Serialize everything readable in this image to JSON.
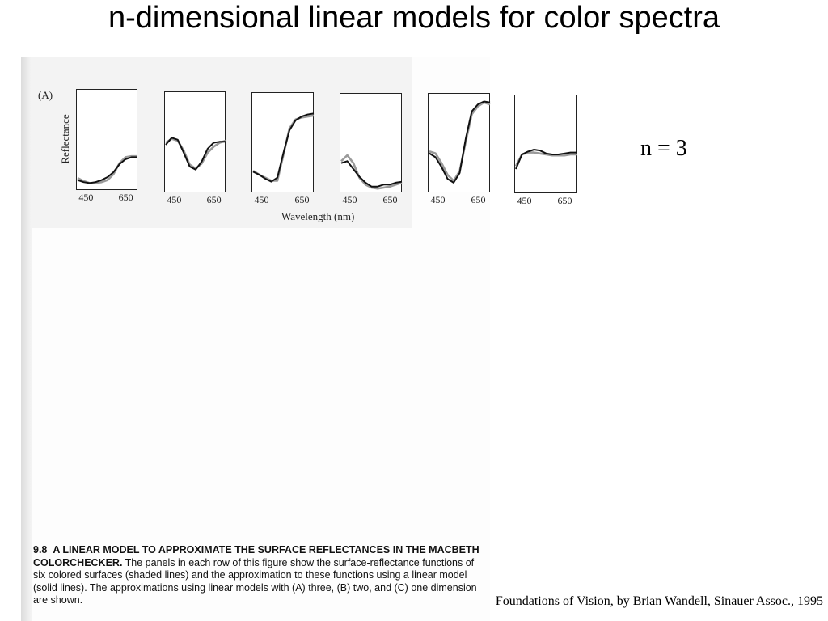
{
  "slide": {
    "title": "n-dimensional linear models for color spectra",
    "n_label": "n = 3",
    "credit": "Foundations of Vision, by Brian Wandell, Sinauer Assoc., 1995"
  },
  "figure": {
    "panel_label": "(A)",
    "caption": {
      "number": "9.8",
      "heading": "A LINEAR MODEL TO APPROXIMATE THE SURFACE REFLECTANCES IN THE MACBETH COLORCHECKER.",
      "body": "The panels in each row of this figure show the surface-reflectance functions of six colored surfaces (shaded lines) and the approximation to these functions using a linear model (solid lines). The approximations using linear models with (A) three, (B) two, and (C) one dimension are shown."
    }
  },
  "chart_data": {
    "type": "line",
    "xlabel": "Wavelength (nm)",
    "ylabel": "Reflectance",
    "xticks": [
      "450",
      "650"
    ],
    "xlim": [
      400,
      700
    ],
    "ylim": [
      0,
      1
    ],
    "panels": [
      {
        "x": [
          400,
          430,
          460,
          490,
          520,
          550,
          580,
          610,
          640,
          670,
          700
        ],
        "series": [
          {
            "style": "shaded",
            "values": [
              0.12,
              0.09,
              0.07,
              0.07,
              0.08,
              0.1,
              0.16,
              0.27,
              0.33,
              0.34,
              0.34
            ]
          },
          {
            "style": "solid",
            "values": [
              0.1,
              0.08,
              0.07,
              0.08,
              0.1,
              0.13,
              0.18,
              0.26,
              0.31,
              0.33,
              0.33
            ]
          }
        ]
      },
      {
        "x": [
          400,
          430,
          460,
          490,
          520,
          550,
          580,
          610,
          640,
          670,
          700
        ],
        "series": [
          {
            "style": "shaded",
            "values": [
              0.5,
              0.54,
              0.52,
              0.42,
              0.28,
              0.24,
              0.29,
              0.4,
              0.46,
              0.5,
              0.52
            ]
          },
          {
            "style": "solid",
            "values": [
              0.48,
              0.55,
              0.53,
              0.4,
              0.26,
              0.23,
              0.31,
              0.44,
              0.5,
              0.51,
              0.51
            ]
          }
        ]
      },
      {
        "x": [
          400,
          430,
          460,
          490,
          520,
          550,
          580,
          610,
          640,
          670,
          700
        ],
        "series": [
          {
            "style": "shaded",
            "values": [
              0.22,
              0.18,
              0.15,
              0.12,
              0.12,
              0.38,
              0.65,
              0.74,
              0.76,
              0.77,
              0.78
            ]
          },
          {
            "style": "solid",
            "values": [
              0.21,
              0.18,
              0.14,
              0.11,
              0.15,
              0.4,
              0.63,
              0.73,
              0.77,
              0.79,
              0.8
            ]
          }
        ]
      },
      {
        "x": [
          400,
          430,
          460,
          490,
          520,
          550,
          580,
          610,
          640,
          670,
          700
        ],
        "series": [
          {
            "style": "shaded",
            "values": [
              0.32,
              0.38,
              0.3,
              0.15,
              0.08,
              0.05,
              0.04,
              0.05,
              0.06,
              0.08,
              0.1
            ]
          },
          {
            "style": "solid",
            "values": [
              0.3,
              0.32,
              0.24,
              0.16,
              0.1,
              0.06,
              0.06,
              0.08,
              0.08,
              0.1,
              0.11
            ]
          }
        ]
      },
      {
        "x": [
          400,
          430,
          460,
          490,
          520,
          550,
          580,
          610,
          640,
          670,
          700
        ],
        "series": [
          {
            "style": "shaded",
            "values": [
              0.42,
              0.4,
              0.3,
              0.18,
              0.12,
              0.22,
              0.52,
              0.8,
              0.88,
              0.92,
              0.9
            ]
          },
          {
            "style": "solid",
            "values": [
              0.4,
              0.36,
              0.26,
              0.14,
              0.1,
              0.2,
              0.55,
              0.83,
              0.9,
              0.93,
              0.92
            ]
          }
        ]
      },
      {
        "x": [
          400,
          430,
          460,
          490,
          520,
          550,
          580,
          610,
          640,
          670,
          700
        ],
        "series": [
          {
            "style": "shaded",
            "values": [
              0.28,
              0.4,
              0.42,
              0.42,
              0.41,
              0.4,
              0.39,
              0.39,
              0.39,
              0.4,
              0.4
            ]
          },
          {
            "style": "solid",
            "values": [
              0.25,
              0.4,
              0.43,
              0.45,
              0.44,
              0.41,
              0.4,
              0.4,
              0.41,
              0.42,
              0.42
            ]
          }
        ]
      }
    ],
    "colors": {
      "shaded": "#9a9a9a",
      "solid": "#111111"
    }
  }
}
